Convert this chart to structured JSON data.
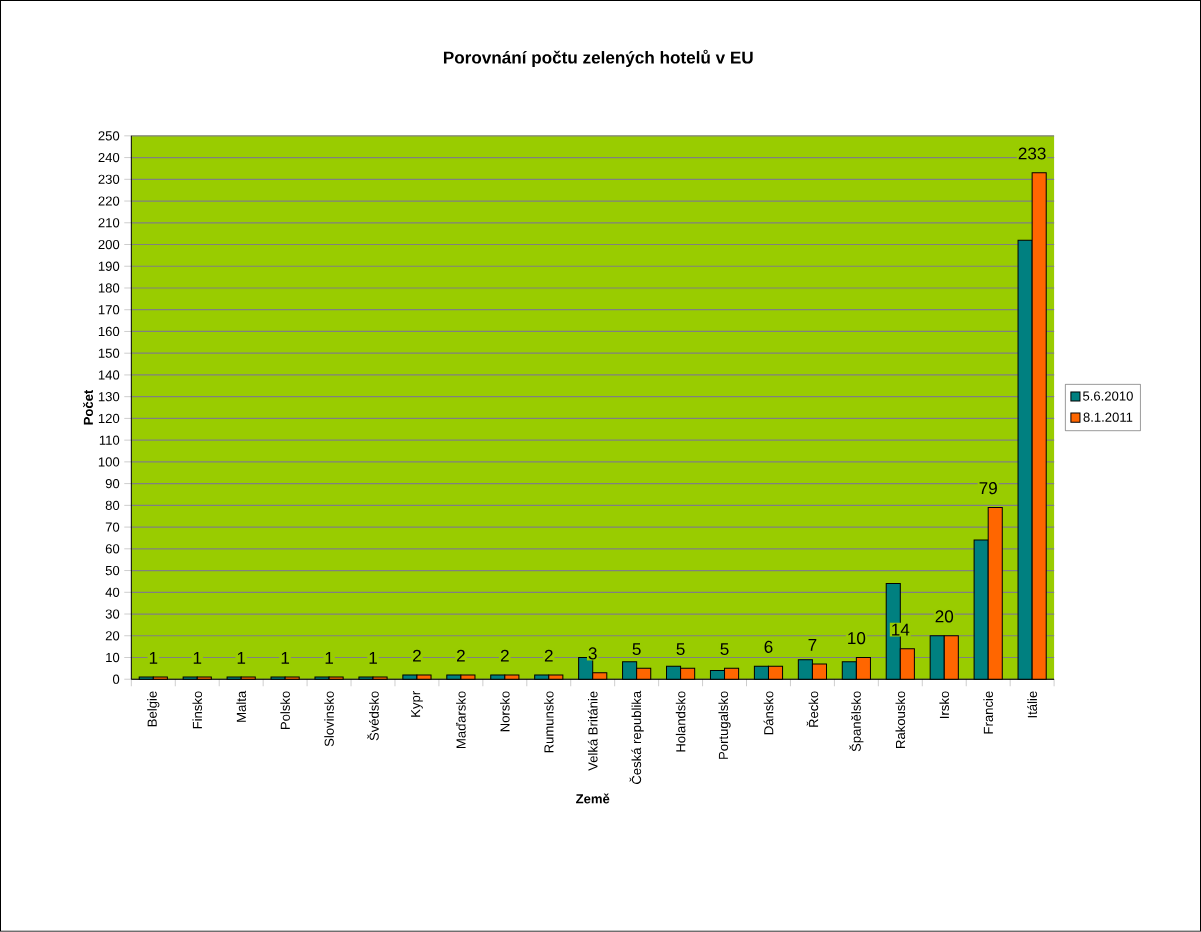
{
  "chart_data": {
    "type": "bar",
    "title": "Porovnání počtu zelených hotelů v EU",
    "xlabel": "Země",
    "ylabel": "Počet",
    "categories": [
      "Belgie",
      "Finsko",
      "Malta",
      "Polsko",
      "Slovinsko",
      "Švédsko",
      "Kypr",
      "Maďarsko",
      "Norsko",
      "Rumunsko",
      "Velká Británie",
      "Česká republika",
      "Holandsko",
      "Portugalsko",
      "Dánsko",
      "Řecko",
      "Španělsko",
      "Rakousko",
      "Irsko",
      "Francie",
      "Itálie"
    ],
    "series": [
      {
        "name": "5.6.2010",
        "color": "#008080",
        "values": [
          1,
          1,
          1,
          1,
          1,
          1,
          2,
          2,
          2,
          2,
          10,
          8,
          6,
          4,
          6,
          9,
          8,
          44,
          20,
          64,
          202
        ]
      },
      {
        "name": "8.1.2011",
        "color": "#ff6600",
        "values": [
          1,
          1,
          1,
          1,
          1,
          1,
          2,
          2,
          2,
          2,
          3,
          5,
          5,
          5,
          6,
          7,
          10,
          14,
          20,
          79,
          233
        ],
        "value_labels": [
          "1",
          "1",
          "1",
          "1",
          "1",
          "1",
          "2",
          "2",
          "2",
          "2",
          "3",
          "5",
          "5",
          "5",
          "6",
          "7",
          "10",
          "14",
          "20",
          "79",
          "233"
        ]
      }
    ],
    "ylim": [
      0,
      250
    ],
    "yticks": [
      0,
      10,
      20,
      30,
      40,
      50,
      60,
      70,
      80,
      90,
      100,
      110,
      120,
      130,
      140,
      150,
      160,
      170,
      180,
      190,
      200,
      210,
      220,
      230,
      240,
      250
    ],
    "grid": "y",
    "legend": "right"
  }
}
